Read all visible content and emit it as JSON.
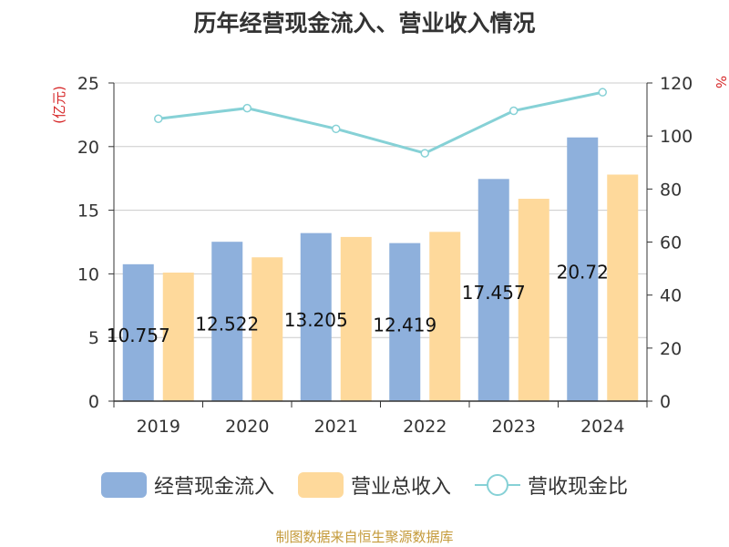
{
  "chart_data": {
    "type": "bar",
    "title": "历年经营现金流入、营业收入情况",
    "categories": [
      "2019",
      "2020",
      "2021",
      "2022",
      "2023",
      "2024"
    ],
    "left_axis": {
      "unit": "(亿元)",
      "ylim": [
        0,
        25
      ],
      "ticks": [
        "0",
        "5",
        "10",
        "15",
        "20",
        "25"
      ]
    },
    "right_axis": {
      "unit": "%",
      "ylim": [
        0,
        120
      ],
      "ticks": [
        "0",
        "20",
        "40",
        "60",
        "80",
        "100",
        "120"
      ]
    },
    "series": [
      {
        "name": "经营现金流入",
        "kind": "bar",
        "axis": "left",
        "color": "#8eb0dc",
        "values": [
          10.757,
          12.522,
          13.205,
          12.419,
          17.457,
          20.72
        ],
        "labels": [
          "10.757",
          "12.522",
          "13.205",
          "12.419",
          "17.457",
          "20.72"
        ]
      },
      {
        "name": "营业总收入",
        "kind": "bar",
        "axis": "left",
        "color": "#fed99b",
        "values": [
          10.1,
          11.3,
          12.9,
          13.3,
          15.9,
          17.8
        ]
      },
      {
        "name": "营收现金比",
        "kind": "line",
        "axis": "right",
        "color": "#86d1d6",
        "values": [
          106.5,
          110.5,
          102.7,
          93.5,
          109.5,
          116.5
        ]
      }
    ],
    "grid": true,
    "legend_position": "bottom"
  },
  "source_note": "制图数据来自恒生聚源数据库",
  "colors": {
    "unit_left": "#d62728",
    "unit_right": "#d62728",
    "axis": "#333333",
    "grid": "#cccccc"
  }
}
